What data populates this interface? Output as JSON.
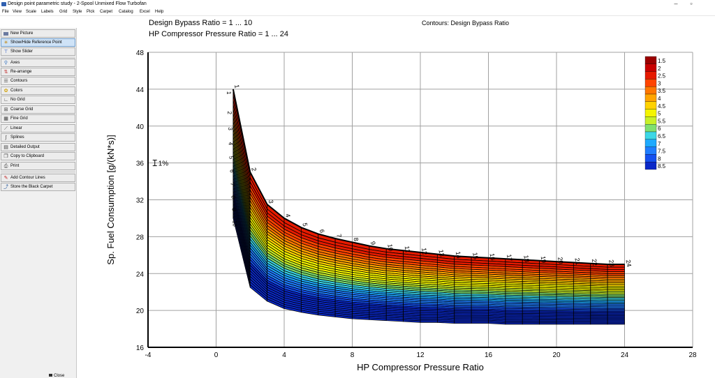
{
  "window": {
    "title": "Design point parametric study - 2-Spool Unmixed Flow Turbofan",
    "minimize_glyph": "–",
    "maximize_glyph": "▫"
  },
  "menu": [
    "File",
    "View",
    "Scale",
    "Labels",
    "Grid",
    "Style",
    "Pick",
    "Carpet",
    "Catalog",
    "Excel",
    "Help"
  ],
  "sidebar": {
    "items": [
      {
        "label": "New Picture",
        "icon": "new-picture-icon",
        "active": false
      },
      {
        "label": "Show/Hide Reference Point",
        "icon": "reference-point-icon",
        "active": true
      },
      {
        "label": "Show Slider",
        "icon": "slider-icon",
        "active": false
      },
      {
        "label": "Axes",
        "icon": "axes-icon",
        "active": false
      },
      {
        "label": "Re-arrange",
        "icon": "rearrange-icon",
        "active": false
      },
      {
        "label": "Contours",
        "icon": "contours-icon",
        "active": false
      },
      {
        "label": "Colors",
        "icon": "colors-icon",
        "active": false
      },
      {
        "label": "No Grid",
        "icon": "no-grid-icon",
        "active": false
      },
      {
        "label": "Coarse Grid",
        "icon": "coarse-grid-icon",
        "active": false
      },
      {
        "label": "Fine Grid",
        "icon": "fine-grid-icon",
        "active": false
      },
      {
        "label": "Linear",
        "icon": "linear-icon",
        "active": false
      },
      {
        "label": "Splines",
        "icon": "splines-icon",
        "active": false
      },
      {
        "label": "Detailed Output",
        "icon": "detailed-output-icon",
        "active": false
      },
      {
        "label": "Copy to Clipboard",
        "icon": "clipboard-icon",
        "active": false
      },
      {
        "label": "Print",
        "icon": "print-icon",
        "active": false
      },
      {
        "label": "Add Contour Lines",
        "icon": "add-contour-icon",
        "active": false
      },
      {
        "label": "Store the Black Carpet",
        "icon": "store-carpet-icon",
        "active": false
      }
    ],
    "footer_label": "Close"
  },
  "chart_header": {
    "line1": "Design Bypass Ratio = 1 ... 10",
    "line2": "HP Compressor Pressure Ratio = 1 ... 24",
    "contours": "Contours: Design Bypass Ratio"
  },
  "chart_data": {
    "type": "carpet",
    "xlabel": "HP Compressor Pressure Ratio",
    "ylabel": "Sp. Fuel Consumption [g/(kN*s)]",
    "xlim": [
      -4,
      28
    ],
    "ylim": [
      16,
      48
    ],
    "x_ticks": [
      -4,
      0,
      4,
      8,
      12,
      16,
      20,
      24,
      28
    ],
    "y_ticks": [
      16,
      20,
      24,
      28,
      32,
      36,
      40,
      44,
      48
    ],
    "reference_label": "1%",
    "reference_point": {
      "x": -3.6,
      "y": 36
    },
    "pressure_ratio_labels": [
      "1",
      "2",
      "3",
      "4",
      "5",
      "6",
      "7",
      "8",
      "9",
      "10",
      "11",
      "12",
      "13",
      "14",
      "15",
      "16",
      "17",
      "18",
      "19",
      "20",
      "21",
      "22",
      "23",
      "24"
    ],
    "bypass_ratio_labels": [
      "1",
      "2",
      "3",
      "4",
      "5",
      "6",
      "7",
      "8",
      "9",
      "10"
    ],
    "bypass_ratio_range": [
      1,
      10
    ],
    "pressure_ratio_range": [
      1,
      24
    ],
    "top_edge": {
      "description": "BPR = 1 line",
      "points": [
        [
          1,
          44.0
        ],
        [
          2,
          35.0
        ],
        [
          3,
          31.5
        ],
        [
          4,
          30.0
        ],
        [
          5,
          29.0
        ],
        [
          6,
          28.3
        ],
        [
          7,
          27.8
        ],
        [
          8,
          27.4
        ],
        [
          9,
          27.0
        ],
        [
          10,
          26.7
        ],
        [
          11,
          26.5
        ],
        [
          12,
          26.3
        ],
        [
          13,
          26.1
        ],
        [
          14,
          25.9
        ],
        [
          15,
          25.8
        ],
        [
          16,
          25.7
        ],
        [
          17,
          25.6
        ],
        [
          18,
          25.5
        ],
        [
          19,
          25.4
        ],
        [
          20,
          25.3
        ],
        [
          21,
          25.2
        ],
        [
          22,
          25.1
        ],
        [
          23,
          25.0
        ],
        [
          24,
          25.0
        ]
      ]
    },
    "bottom_edge": {
      "description": "BPR = 10 line",
      "points": [
        [
          1,
          30.0
        ],
        [
          2,
          22.5
        ],
        [
          3,
          21.0
        ],
        [
          4,
          20.2
        ],
        [
          5,
          19.8
        ],
        [
          6,
          19.5
        ],
        [
          7,
          19.3
        ],
        [
          8,
          19.1
        ],
        [
          9,
          19.0
        ],
        [
          10,
          18.9
        ],
        [
          11,
          18.8
        ],
        [
          12,
          18.7
        ],
        [
          13,
          18.7
        ],
        [
          14,
          18.6
        ],
        [
          15,
          18.6
        ],
        [
          16,
          18.6
        ],
        [
          17,
          18.5
        ],
        [
          18,
          18.5
        ],
        [
          19,
          18.5
        ],
        [
          20,
          18.5
        ],
        [
          21,
          18.5
        ],
        [
          22,
          18.5
        ],
        [
          23,
          18.5
        ],
        [
          24,
          18.5
        ]
      ]
    },
    "legend": {
      "labels": [
        "1.5",
        "2",
        "2.5",
        "3",
        "3.5",
        "4",
        "4.5",
        "5",
        "5.5",
        "6",
        "6.5",
        "7",
        "7.5",
        "8",
        "8.5"
      ],
      "colors": [
        "#9b0000",
        "#c80000",
        "#e61a00",
        "#ff4400",
        "#ff7700",
        "#ffa500",
        "#ffd200",
        "#f5f500",
        "#c8f028",
        "#7fe070",
        "#3cd7e6",
        "#1eaaff",
        "#1f7dff",
        "#1450f0",
        "#0a28c8"
      ]
    }
  }
}
